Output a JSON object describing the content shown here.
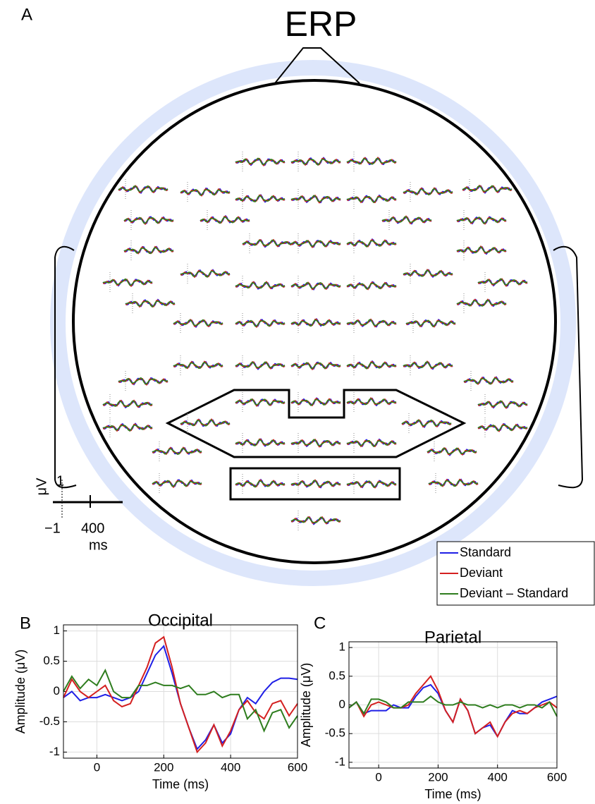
{
  "topomap": {
    "label": "A",
    "title": "ERP",
    "scale": {
      "y_top": "1",
      "y_unit": "μV",
      "y_bottom": "−1",
      "x_tick": "400",
      "x_unit": "ms"
    }
  },
  "chart_data": [
    {
      "type": "line",
      "label": "B",
      "title": "Occipital",
      "x_label": "Time (ms)",
      "y_label": "Amplitude (μV)",
      "x": [
        -100,
        -75,
        -50,
        -25,
        0,
        25,
        50,
        75,
        100,
        125,
        150,
        175,
        200,
        225,
        250,
        275,
        300,
        325,
        350,
        375,
        400,
        425,
        450,
        475,
        500,
        525,
        550,
        575,
        600
      ],
      "series": [
        {
          "name": "Standard",
          "color": "#1f1fe6",
          "values": [
            -0.1,
            0,
            -0.15,
            -0.1,
            -0.1,
            -0.05,
            -0.1,
            -0.15,
            -0.1,
            0,
            0.3,
            0.6,
            0.75,
            0.3,
            -0.2,
            -0.6,
            -0.95,
            -0.8,
            -0.55,
            -0.85,
            -0.7,
            -0.3,
            -0.1,
            -0.2,
            0,
            0.15,
            0.22,
            0.22,
            0.2
          ]
        },
        {
          "name": "Deviant",
          "color": "#d42020",
          "values": [
            -0.1,
            0.2,
            0,
            -0.1,
            0,
            0.1,
            -0.15,
            -0.25,
            -0.2,
            0.1,
            0.4,
            0.8,
            0.9,
            0.4,
            -0.2,
            -0.6,
            -1.0,
            -0.85,
            -0.55,
            -0.9,
            -0.65,
            -0.3,
            -0.15,
            -0.35,
            -0.45,
            -0.2,
            -0.15,
            -0.4,
            -0.2
          ]
        },
        {
          "name": "Deviant – Standard",
          "color": "#2e7d1e",
          "values": [
            0,
            0.25,
            0.05,
            0.2,
            0.1,
            0.35,
            0,
            -0.1,
            -0.1,
            0.1,
            0.1,
            0.15,
            0.1,
            0.1,
            0.05,
            0.1,
            -0.05,
            -0.05,
            0,
            -0.1,
            -0.05,
            -0.05,
            -0.45,
            -0.3,
            -0.65,
            -0.35,
            -0.3,
            -0.6,
            -0.4
          ]
        }
      ],
      "xlim": [
        -100,
        600
      ],
      "xticks": [
        0,
        200,
        400,
        600
      ],
      "ylim": [
        -1.1,
        1.1
      ],
      "yticks": [
        -1,
        -0.5,
        0,
        0.5,
        1
      ],
      "grid": true
    },
    {
      "type": "line",
      "label": "C",
      "title": "Parietal",
      "x_label": "Time (ms)",
      "y_label": "Amplitude (μV)",
      "x": [
        -100,
        -75,
        -50,
        -25,
        0,
        25,
        50,
        75,
        100,
        125,
        150,
        175,
        200,
        225,
        250,
        275,
        300,
        325,
        350,
        375,
        400,
        425,
        450,
        475,
        500,
        525,
        550,
        575,
        600
      ],
      "series": [
        {
          "name": "Standard",
          "color": "#1f1fe6",
          "values": [
            -0.05,
            0.05,
            -0.15,
            -0.1,
            -0.1,
            -0.1,
            0,
            -0.05,
            -0.05,
            0.15,
            0.3,
            0.35,
            0.2,
            -0.1,
            -0.3,
            0.1,
            -0.1,
            -0.5,
            -0.4,
            -0.35,
            -0.55,
            -0.3,
            -0.1,
            -0.15,
            -0.15,
            -0.05,
            0.05,
            0.1,
            0.15
          ]
        },
        {
          "name": "Deviant",
          "color": "#d42020",
          "values": [
            -0.05,
            0.05,
            -0.2,
            0,
            0.05,
            0,
            -0.05,
            -0.05,
            0,
            0.2,
            0.35,
            0.5,
            0.25,
            -0.1,
            -0.3,
            0.1,
            -0.1,
            -0.5,
            -0.4,
            -0.3,
            -0.55,
            -0.3,
            -0.15,
            -0.1,
            -0.15,
            -0.05,
            0,
            0.05,
            -0.05
          ]
        },
        {
          "name": "Deviant – Standard",
          "color": "#2e7d1e",
          "values": [
            -0.05,
            0.05,
            -0.15,
            0.1,
            0.1,
            0.05,
            -0.05,
            -0.05,
            0.05,
            0.05,
            0.05,
            0.15,
            0.05,
            0,
            0,
            0.05,
            0,
            0,
            -0.05,
            0,
            -0.05,
            0,
            0,
            -0.05,
            0,
            0,
            -0.05,
            0.05,
            -0.2
          ]
        }
      ],
      "xlim": [
        -100,
        600
      ],
      "xticks": [
        0,
        200,
        400,
        600
      ],
      "ylim": [
        -1.1,
        1.1
      ],
      "yticks": [
        -1,
        -0.5,
        0,
        0.5,
        1
      ],
      "grid": true
    }
  ]
}
